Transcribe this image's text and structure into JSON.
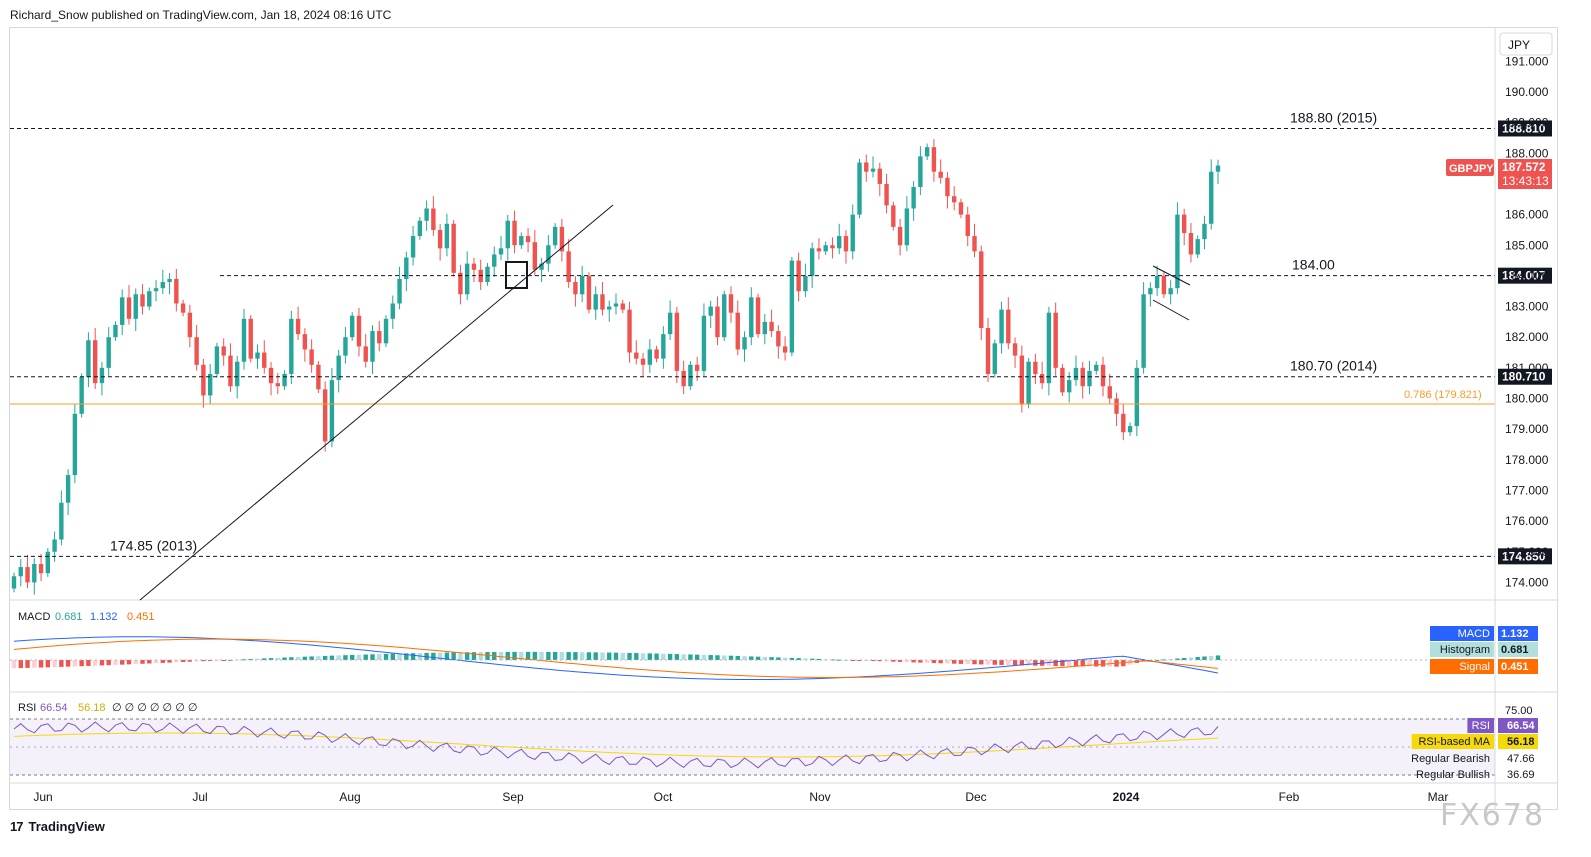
{
  "header": {
    "publisher": "Richard_Snow published on TradingView.com, Jan 18, 2024 08:16 UTC"
  },
  "footer": {
    "brand": "TradingView",
    "logo": "17"
  },
  "watermark": "FX678",
  "colors": {
    "up": "#26a69a",
    "down": "#ef5350",
    "fib": "#f59f2b",
    "macd": "#2962ff",
    "signal": "#ff6d00",
    "rsi": "#7e57c2",
    "rsi_ma": "#f5d90a"
  },
  "chart_data": {
    "type": "candlestick",
    "symbol": "GBPJPY",
    "currency": "JPY",
    "x_labels": [
      "Jun",
      "Jul",
      "Aug",
      "Sep",
      "Oct",
      "Nov",
      "Dec",
      "2024",
      "Feb",
      "Mar"
    ],
    "y_ticks": [
      "191.000",
      "190.000",
      "189.000",
      "188.000",
      "187.000",
      "186.000",
      "185.000",
      "184.000",
      "183.000",
      "182.000",
      "181.000",
      "180.000",
      "179.000",
      "178.000",
      "177.000",
      "176.000",
      "175.000",
      "174.000"
    ],
    "ylim": [
      173.5,
      191.8
    ],
    "current_price": "187.572",
    "countdown": "13:43:13",
    "levels": [
      {
        "label": "188.80 (2015)",
        "tag": "188.810",
        "value": 188.81
      },
      {
        "label": "184.00",
        "tag": "184.007",
        "value": 184.007
      },
      {
        "label": "180.70 (2014)",
        "tag": "180.710",
        "value": 180.71
      },
      {
        "label": "174.85 (2013)",
        "tag": "174.850",
        "value": 174.85
      }
    ],
    "fib_level": {
      "label": "0.786 (179.821)",
      "value": 179.821
    },
    "closes": [
      174.2,
      174.5,
      174.0,
      174.6,
      174.3,
      175.0,
      175.4,
      176.6,
      177.5,
      179.5,
      180.7,
      181.9,
      180.5,
      181.0,
      182.0,
      182.4,
      183.3,
      182.6,
      183.4,
      183.0,
      183.5,
      183.6,
      183.8,
      183.9,
      183.1,
      182.8,
      182.0,
      181.1,
      180.1,
      180.8,
      181.7,
      181.4,
      180.4,
      181.2,
      182.6,
      181.3,
      181.5,
      181.0,
      180.5,
      180.4,
      180.8,
      182.6,
      182.1,
      181.6,
      181.1,
      180.3,
      178.6,
      180.6,
      181.4,
      182.0,
      182.7,
      181.7,
      181.2,
      182.2,
      181.8,
      182.6,
      183.1,
      183.9,
      184.6,
      185.3,
      185.8,
      186.2,
      185.5,
      184.9,
      185.7,
      184.1,
      183.4,
      184.4,
      184.2,
      183.8,
      184.3,
      184.7,
      184.9,
      185.8,
      185.0,
      185.3,
      185.1,
      184.2,
      184.4,
      185.0,
      185.6,
      184.8,
      183.8,
      183.4,
      184.0,
      182.9,
      183.4,
      182.9,
      183.0,
      183.1,
      182.9,
      181.5,
      181.3,
      181.1,
      181.6,
      181.3,
      182.1,
      182.8,
      180.9,
      180.4,
      181.1,
      180.9,
      182.7,
      183.0,
      182.0,
      183.4,
      182.8,
      181.6,
      182.0,
      183.3,
      182.1,
      182.5,
      182.2,
      181.7,
      181.5,
      184.5,
      183.5,
      184.0,
      184.9,
      184.8,
      185.0,
      184.9,
      185.3,
      184.8,
      186.0,
      187.7,
      187.4,
      187.5,
      187.0,
      186.3,
      185.6,
      185.0,
      186.2,
      186.9,
      187.9,
      188.2,
      187.4,
      187.2,
      186.6,
      186.4,
      186.0,
      185.3,
      184.8,
      182.3,
      180.8,
      181.8,
      182.9,
      181.8,
      181.4,
      179.8,
      181.2,
      180.8,
      180.5,
      182.8,
      181.0,
      180.2,
      180.6,
      181.0,
      180.4,
      180.9,
      181.1,
      180.4,
      180.0,
      179.5,
      178.9,
      179.1,
      181.0,
      183.4,
      183.6,
      184.0,
      183.4,
      183.6,
      186.0,
      185.4,
      184.7,
      185.2,
      185.7,
      187.4,
      187.6
    ],
    "macd": {
      "macd": "1.132",
      "histogram": "0.681",
      "signal": "0.451",
      "labels": [
        "MACD",
        "Histogram",
        "Signal"
      ],
      "title": "MACD"
    },
    "rsi": {
      "rsi": "66.54",
      "ma": "56.18",
      "bearish": "47.66",
      "bullish": "36.69",
      "labels": [
        "RSI",
        "RSI-based MA",
        "Regular Bearish",
        "Regular Bullish"
      ],
      "title": "RSI",
      "top_level": "75.00",
      "nulls": "∅ ∅ ∅ ∅ ∅ ∅ ∅"
    }
  }
}
